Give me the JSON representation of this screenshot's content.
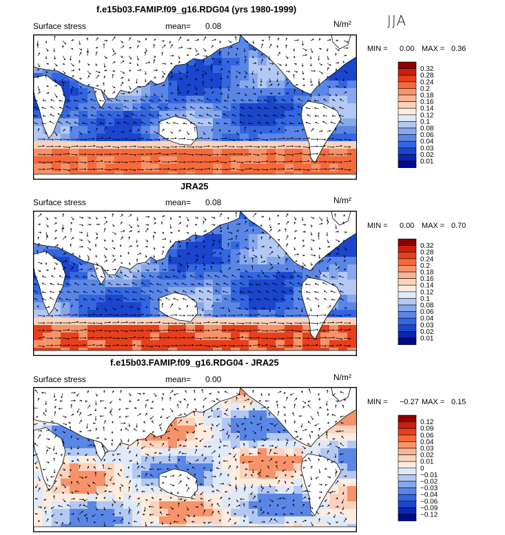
{
  "season": "JJA",
  "panels": [
    {
      "title": "f.e15b03.FAMIP.f09_g16.RDG04 (yrs 1980-1999)",
      "variable": "Surface stress",
      "mean_label": "mean=",
      "mean": "0.08",
      "units": "N/m²",
      "min_label": "MIN =",
      "min": "0.00",
      "max_label": "MAX =",
      "max": "0.36",
      "colorbar": {
        "levels": [
          "0.32",
          "0.28",
          "0.24",
          "0.2",
          "0.18",
          "0.16",
          "0.14",
          "0.12",
          "0.1",
          "0.08",
          "0.06",
          "0.04",
          "0.03",
          "0.02",
          "0.01"
        ],
        "colors": [
          "#8b0000",
          "#c8200f",
          "#e8401c",
          "#f56a3c",
          "#f7936a",
          "#f9b595",
          "#fbd3bd",
          "#fdecdf",
          "#dfe9f8",
          "#b3c8f2",
          "#87a8ec",
          "#5a86e6",
          "#3366e0",
          "#1a45cc",
          "#0a25b0",
          "#000a8b"
        ]
      }
    },
    {
      "title": "JRA25",
      "variable": "Surface stress",
      "mean_label": "mean=",
      "mean": "0.08",
      "units": "N/m²",
      "min_label": "MIN =",
      "min": "0.00",
      "max_label": "MAX =",
      "max": "0.70",
      "colorbar": {
        "levels": [
          "0.32",
          "0.28",
          "0.24",
          "0.2",
          "0.18",
          "0.16",
          "0.14",
          "0.12",
          "0.1",
          "0.08",
          "0.06",
          "0.04",
          "0.03",
          "0.02",
          "0.01"
        ],
        "colors": [
          "#8b0000",
          "#c8200f",
          "#e8401c",
          "#f56a3c",
          "#f7936a",
          "#f9b595",
          "#fbd3bd",
          "#fdecdf",
          "#dfe9f8",
          "#b3c8f2",
          "#87a8ec",
          "#5a86e6",
          "#3366e0",
          "#1a45cc",
          "#0a25b0",
          "#000a8b"
        ]
      }
    },
    {
      "title": "f.e15b03.FAMIP.f09_g16.RDG04 - JRA25",
      "variable": "Surface stress",
      "mean_label": "mean=",
      "mean": "0.00",
      "units": "N/m²",
      "min_label": "MIN =",
      "min": "−0.27",
      "max_label": "MAX =",
      "max": "0.15",
      "colorbar": {
        "levels": [
          "0.12",
          "0.09",
          "0.06",
          "0.04",
          "0.03",
          "0.02",
          "0.01",
          "0",
          "−0.01",
          "−0.02",
          "−0.03",
          "−0.04",
          "−0.06",
          "−0.09",
          "−0.12"
        ],
        "colors": [
          "#8b0000",
          "#c8200f",
          "#e8401c",
          "#f56a3c",
          "#f7936a",
          "#f9b595",
          "#fbd3bd",
          "#fdecdf",
          "#dfe9f8",
          "#b3c8f2",
          "#87a8ec",
          "#5a86e6",
          "#3366e0",
          "#1a45cc",
          "#0a25b0",
          "#000a8b"
        ]
      }
    }
  ],
  "chart_data": [
    {
      "type": "heatmap",
      "title": "f.e15b03.FAMIP.f09_g16.RDG04 (yrs 1980-1999)",
      "field": "Surface stress",
      "units": "N/m²",
      "season": "JJA",
      "mean": 0.08,
      "min": 0.0,
      "max": 0.36,
      "contour_levels": [
        0.01,
        0.02,
        0.03,
        0.04,
        0.06,
        0.08,
        0.1,
        0.12,
        0.14,
        0.16,
        0.18,
        0.2,
        0.24,
        0.28,
        0.32
      ],
      "overlay": "wind stress vectors"
    },
    {
      "type": "heatmap",
      "title": "JRA25",
      "field": "Surface stress",
      "units": "N/m²",
      "season": "JJA",
      "mean": 0.08,
      "min": 0.0,
      "max": 0.7,
      "contour_levels": [
        0.01,
        0.02,
        0.03,
        0.04,
        0.06,
        0.08,
        0.1,
        0.12,
        0.14,
        0.16,
        0.18,
        0.2,
        0.24,
        0.28,
        0.32
      ],
      "overlay": "wind stress vectors"
    },
    {
      "type": "heatmap",
      "title": "f.e15b03.FAMIP.f09_g16.RDG04 - JRA25",
      "field": "Surface stress",
      "units": "N/m²",
      "season": "JJA",
      "mean": 0.0,
      "min": -0.27,
      "max": 0.15,
      "contour_levels": [
        -0.12,
        -0.09,
        -0.06,
        -0.04,
        -0.03,
        -0.02,
        -0.01,
        0,
        0.01,
        0.02,
        0.03,
        0.04,
        0.06,
        0.09,
        0.12
      ],
      "overlay": "wind stress difference vectors"
    }
  ]
}
